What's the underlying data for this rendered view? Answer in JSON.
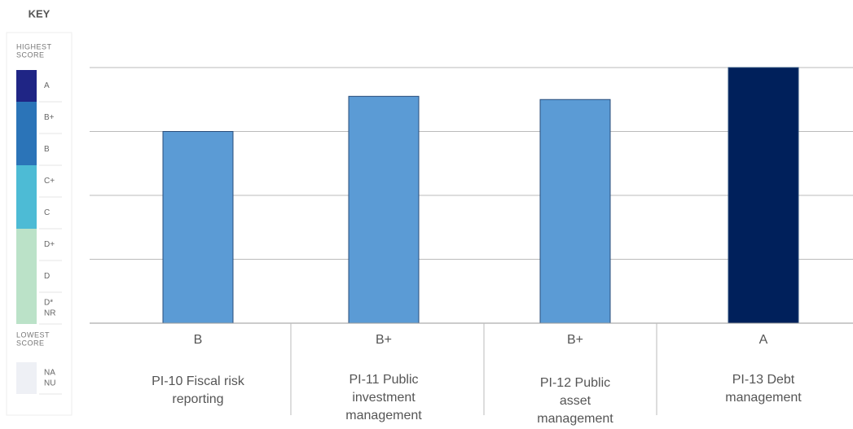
{
  "key": {
    "title": "KEY",
    "highest": [
      "HIGHEST",
      "SCORE"
    ],
    "lowest": [
      "LOWEST",
      "SCORE"
    ],
    "groups": [
      {
        "color": "#1f2585",
        "rows": [
          [
            "A"
          ]
        ]
      },
      {
        "color": "#2b74b8",
        "rows": [
          [
            "B+"
          ],
          [
            "B"
          ]
        ]
      },
      {
        "color": "#4dbbd5",
        "rows": [
          [
            "C+"
          ],
          [
            "C"
          ]
        ]
      },
      {
        "color": "#bbe2c8",
        "rows": [
          [
            "D+"
          ],
          [
            "D"
          ],
          [
            "D*",
            "NR"
          ]
        ]
      }
    ],
    "lowest_group": {
      "color": "#eef0f5",
      "rows": [
        [
          "NA",
          "NU"
        ]
      ]
    }
  },
  "chart_data": {
    "type": "bar",
    "categories": [
      "PI-10 Fiscal risk reporting",
      "PI-11 Public investment management",
      "PI-12 Public asset management",
      "PI-13 Debt management"
    ],
    "values": [
      3,
      3.55,
      3.5,
      4
    ],
    "scores": [
      "B",
      "B+",
      "B+",
      "A"
    ],
    "colors": [
      "#5b9bd5",
      "#5b9bd5",
      "#5b9bd5",
      "#00205b"
    ],
    "ylim": [
      0,
      4
    ],
    "yticks": [
      1,
      2,
      3,
      4
    ],
    "grid": true
  }
}
